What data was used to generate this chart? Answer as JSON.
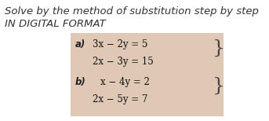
{
  "title_line1": "Solve by the method of substitution step by step",
  "title_line2": "IN DIGITAL FORMAT",
  "title_fontsize": 9.5,
  "title_color": "#333333",
  "box_bg": "#dfc9b5",
  "label_a": "a)",
  "eq_a1": "3x − 2y = 5",
  "eq_a2": "2x − 3y = 15",
  "label_b": "b)",
  "eq_b1": "x − 4y = 2",
  "eq_b2": "2x − 5y = 7",
  "eq_fontsize": 8.5,
  "label_fontsize": 8.5,
  "brace_fontsize": 18
}
